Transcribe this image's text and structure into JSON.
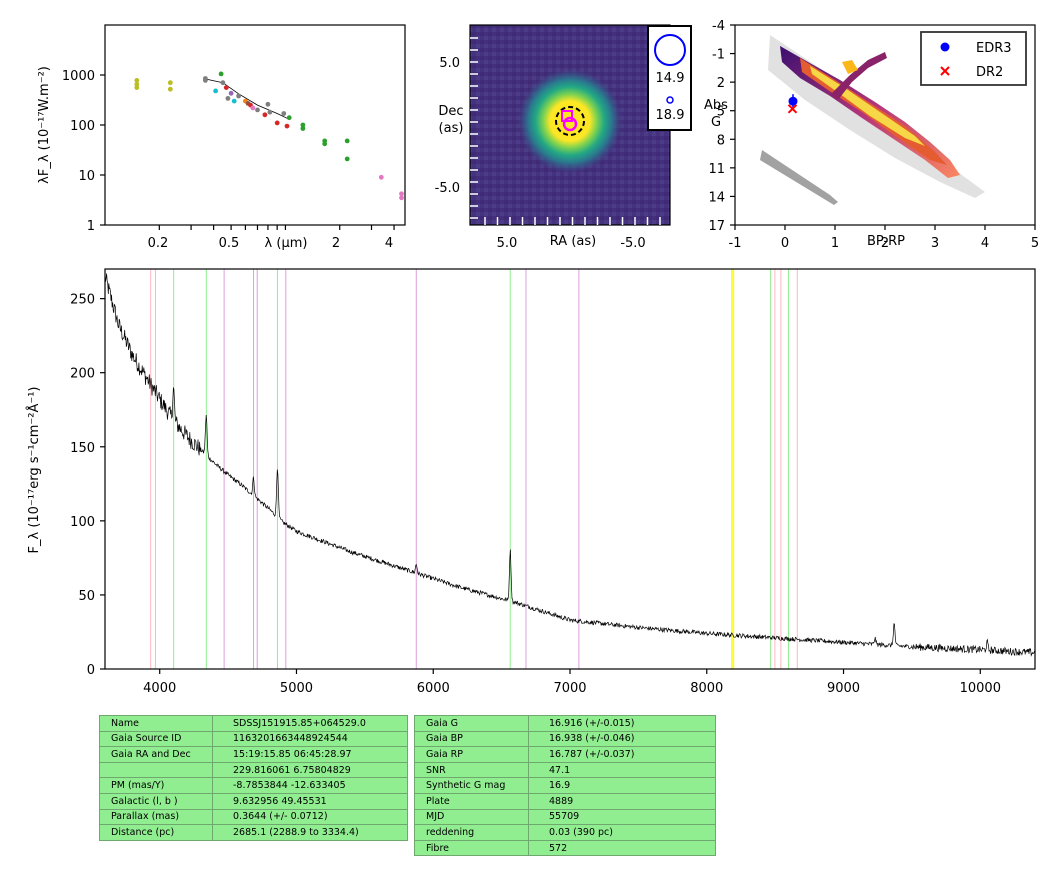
{
  "sed": {
    "ylabel": "λF_λ (10⁻¹⁷W.m⁻²)",
    "xlabel": "λ (μm)",
    "yticks": [
      "1000",
      "100",
      "10",
      "1"
    ],
    "xticks": [
      "0.2",
      "0.5",
      "2",
      "4"
    ],
    "yrange": [
      1,
      10000
    ],
    "xrange": [
      0.1,
      4.6
    ]
  },
  "image": {
    "ylabel_line1": "Dec",
    "ylabel_line2": "(as)",
    "xlabel": "RA (as)",
    "yticks": [
      "5.0",
      "-5.0"
    ],
    "xticks": [
      "5.0",
      "-5.0"
    ],
    "legend": [
      "14.9",
      "18.9"
    ]
  },
  "hrd": {
    "ylabel_line1": "Abs",
    "ylabel_line2": "G",
    "xlabel": "BP-RP",
    "yticks": [
      "-4",
      "-1",
      "2",
      "5",
      "8",
      "11",
      "14",
      "17"
    ],
    "xticks": [
      "-1",
      "0",
      "1",
      "2",
      "3",
      "4",
      "5"
    ],
    "legend": [
      {
        "label": "EDR3",
        "color": "#0000ff",
        "marker": "circle"
      },
      {
        "label": "DR2",
        "color": "#ff0000",
        "marker": "x"
      }
    ]
  },
  "spectrum": {
    "ylabel": "F_λ (10⁻¹⁷erg s⁻¹cm⁻²Å⁻¹)",
    "yticks": [
      "0",
      "50",
      "100",
      "150",
      "200",
      "250"
    ],
    "xticks": [
      "4000",
      "5000",
      "6000",
      "7000",
      "8000",
      "9000",
      "10000"
    ]
  },
  "table_left": [
    {
      "k": "Name",
      "v": "SDSSJ151915.85+064529.0"
    },
    {
      "k": "Gaia Source ID",
      "v": "1163201663448924544"
    },
    {
      "k": "Gaia RA and Dec",
      "v": "15:19:15.85    06:45:28.97"
    },
    {
      "k": "",
      "v": "229.816061    6.75804829"
    },
    {
      "k": "PM (mas/Y)",
      "v": "-8.7853844    -12.633405"
    },
    {
      "k": "Galactic (l, b )",
      "v": "9.632956    49.45531"
    },
    {
      "k": "Parallax (mas)",
      "v": "0.3644 (+/- 0.0712)"
    },
    {
      "k": "Distance (pc)",
      "v": "2685.1 (2288.9 to 3334.4)"
    }
  ],
  "table_right": [
    {
      "k": "Gaia G",
      "v": "16.916 (+/-0.015)"
    },
    {
      "k": "Gaia BP",
      "v": "16.938 (+/-0.046)"
    },
    {
      "k": "Gaia RP",
      "v": "16.787 (+/-0.037)"
    },
    {
      "k": "SNR",
      "v": "47.1"
    },
    {
      "k": "Synthetic G mag",
      "v": "16.9"
    },
    {
      "k": "Plate",
      "v": "4889"
    },
    {
      "k": "MJD",
      "v": "55709"
    },
    {
      "k": "reddening",
      "v": "0.03 (390 pc)"
    },
    {
      "k": "Fibre",
      "v": "572"
    }
  ],
  "chart_data": [
    {
      "type": "scatter",
      "name": "SED",
      "xscale": "log",
      "yscale": "log",
      "xlim": [
        0.1,
        4.6
      ],
      "ylim": [
        1,
        10000
      ],
      "points": [
        {
          "x": 0.15,
          "y": 560,
          "c": "#bcbd22"
        },
        {
          "x": 0.15,
          "y": 650,
          "c": "#bcbd22"
        },
        {
          "x": 0.15,
          "y": 780,
          "c": "#bcbd22"
        },
        {
          "x": 0.23,
          "y": 520,
          "c": "#bcbd22"
        },
        {
          "x": 0.23,
          "y": 700,
          "c": "#bcbd22"
        },
        {
          "x": 0.36,
          "y": 850,
          "c": "#7f7f7f"
        },
        {
          "x": 0.36,
          "y": 780,
          "c": "#7f7f7f"
        },
        {
          "x": 0.41,
          "y": 480,
          "c": "#17becf"
        },
        {
          "x": 0.44,
          "y": 1050,
          "c": "#2ca02c"
        },
        {
          "x": 0.45,
          "y": 700,
          "c": "#7f7f7f"
        },
        {
          "x": 0.47,
          "y": 560,
          "c": "#d62728"
        },
        {
          "x": 0.48,
          "y": 340,
          "c": "#7f7f7f"
        },
        {
          "x": 0.5,
          "y": 430,
          "c": "#9467bd"
        },
        {
          "x": 0.52,
          "y": 300,
          "c": "#17becf"
        },
        {
          "x": 0.55,
          "y": 380,
          "c": "#7f7f7f"
        },
        {
          "x": 0.6,
          "y": 300,
          "c": "#ff7f0e"
        },
        {
          "x": 0.62,
          "y": 270,
          "c": "#8c564b"
        },
        {
          "x": 0.64,
          "y": 250,
          "c": "#d62728"
        },
        {
          "x": 0.66,
          "y": 220,
          "c": "#e377c2"
        },
        {
          "x": 0.7,
          "y": 200,
          "c": "#7f7f7f"
        },
        {
          "x": 0.77,
          "y": 160,
          "c": "#d62728"
        },
        {
          "x": 0.8,
          "y": 260,
          "c": "#7f7f7f"
        },
        {
          "x": 0.82,
          "y": 180,
          "c": "#7f7f7f"
        },
        {
          "x": 0.9,
          "y": 110,
          "c": "#d62728"
        },
        {
          "x": 0.98,
          "y": 170,
          "c": "#7f7f7f"
        },
        {
          "x": 1.02,
          "y": 95,
          "c": "#d62728"
        },
        {
          "x": 1.05,
          "y": 140,
          "c": "#2ca02c"
        },
        {
          "x": 1.25,
          "y": 100,
          "c": "#2ca02c"
        },
        {
          "x": 1.25,
          "y": 85,
          "c": "#2ca02c"
        },
        {
          "x": 1.65,
          "y": 48,
          "c": "#2ca02c"
        },
        {
          "x": 1.65,
          "y": 42,
          "c": "#2ca02c"
        },
        {
          "x": 2.2,
          "y": 48,
          "c": "#2ca02c"
        },
        {
          "x": 2.2,
          "y": 21,
          "c": "#2ca02c"
        },
        {
          "x": 3.4,
          "y": 9,
          "c": "#e377c2"
        },
        {
          "x": 4.4,
          "y": 4.2,
          "c": "#e377c2"
        },
        {
          "x": 4.4,
          "y": 3.5,
          "c": "#e377c2"
        }
      ]
    },
    {
      "type": "heatmap",
      "name": "image cutout",
      "xlim": [
        10,
        -10
      ],
      "ylim": [
        -10,
        10
      ],
      "source": {
        "x": 0,
        "y": 0
      },
      "legend_mags": [
        14.9,
        18.9
      ]
    },
    {
      "type": "scatter",
      "name": "HR diagram",
      "xlim": [
        -1,
        5
      ],
      "ylim": [
        17,
        -4
      ],
      "series": [
        {
          "name": "EDR3",
          "x": [
            0.16
          ],
          "y": [
            4.0
          ]
        },
        {
          "name": "DR2",
          "x": [
            0.15
          ],
          "y": [
            4.8
          ]
        }
      ]
    },
    {
      "type": "line",
      "name": "spectrum",
      "xlim": [
        3600,
        10400
      ],
      "ylim": [
        0,
        270
      ],
      "continuum": [
        [
          3600,
          265
        ],
        [
          3700,
          232
        ],
        [
          3800,
          212
        ],
        [
          3900,
          197
        ],
        [
          4000,
          182
        ],
        [
          4100,
          168
        ],
        [
          4200,
          157
        ],
        [
          4300,
          148
        ],
        [
          4400,
          139
        ],
        [
          4500,
          131
        ],
        [
          4600,
          124
        ],
        [
          4700,
          116
        ],
        [
          4800,
          108
        ],
        [
          4900,
          99
        ],
        [
          5000,
          93
        ],
        [
          5200,
          86
        ],
        [
          5400,
          79
        ],
        [
          5600,
          73
        ],
        [
          5800,
          67
        ],
        [
          6000,
          61
        ],
        [
          6200,
          55
        ],
        [
          6400,
          50
        ],
        [
          6600,
          45
        ],
        [
          7000,
          33
        ],
        [
          7500,
          28
        ],
        [
          8000,
          24
        ],
        [
          8500,
          21
        ],
        [
          9000,
          18
        ],
        [
          9500,
          15
        ],
        [
          10000,
          13
        ],
        [
          10400,
          11
        ]
      ],
      "emission": [
        [
          4101,
          22
        ],
        [
          4340,
          27
        ],
        [
          4686,
          12
        ],
        [
          4861,
          34
        ],
        [
          5876,
          6
        ],
        [
          6563,
          34
        ],
        [
          9230,
          4
        ],
        [
          9370,
          15
        ],
        [
          10050,
          5
        ]
      ],
      "vlines": [
        {
          "x": 3934,
          "c": "#ffb6c1"
        },
        {
          "x": 3969,
          "c": "#ffb6c1"
        },
        {
          "x": 4102,
          "c": "#90ee90"
        },
        {
          "x": 4341,
          "c": "#90ee90"
        },
        {
          "x": 4471,
          "c": "#dda0dd"
        },
        {
          "x": 4686,
          "c": "#dda0dd"
        },
        {
          "x": 4713,
          "c": "#dda0dd"
        },
        {
          "x": 4861,
          "c": "#90ee90"
        },
        {
          "x": 4922,
          "c": "#dda0dd"
        },
        {
          "x": 5876,
          "c": "#dda0dd"
        },
        {
          "x": 6563,
          "c": "#90ee90"
        },
        {
          "x": 6678,
          "c": "#dda0dd"
        },
        {
          "x": 7065,
          "c": "#dda0dd"
        },
        {
          "x": 8183,
          "c": "#ffff00"
        },
        {
          "x": 8195,
          "c": "#ffff00"
        },
        {
          "x": 8467,
          "c": "#90ee90"
        },
        {
          "x": 8498,
          "c": "#ffb6c1"
        },
        {
          "x": 8542,
          "c": "#ffb6c1"
        },
        {
          "x": 8598,
          "c": "#90ee90"
        },
        {
          "x": 8662,
          "c": "#ffb6c1"
        }
      ]
    }
  ]
}
